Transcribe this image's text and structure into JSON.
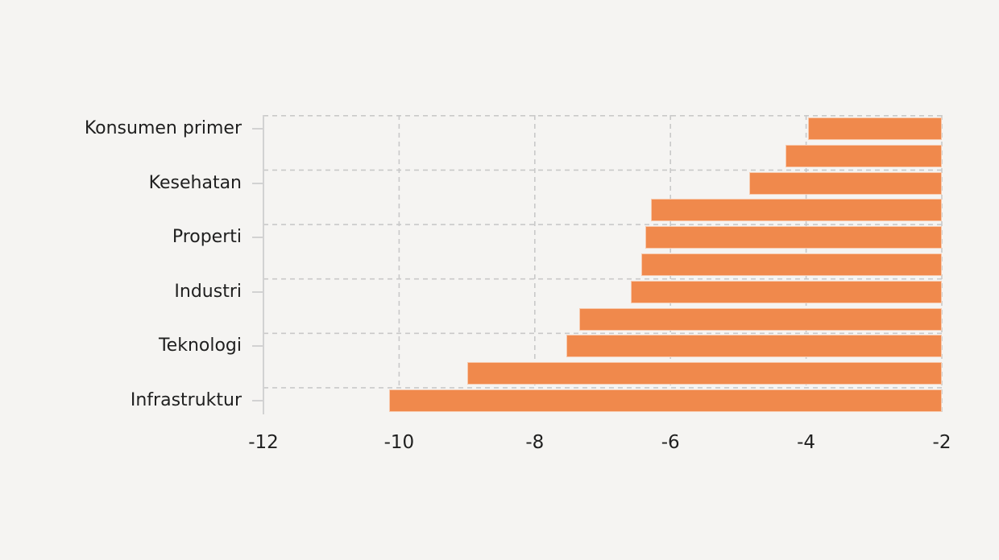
{
  "background_color": "#f5f4f2",
  "chart_data": {
    "type": "bar",
    "orientation": "horizontal",
    "bar_color": "#f0894c",
    "bar_edge_color": "rgba(255,255,255,0.55)",
    "grid_color": "#c9c9c9",
    "grid_style": "dashed",
    "axis_color": "#d2d2d2",
    "text_color": "#1f1f1f",
    "xlim": [
      -12,
      -2
    ],
    "x_tick_values": [
      -12,
      -10,
      -8,
      -6,
      -4,
      -2
    ],
    "x_tick_labels": [
      "-12",
      "-10",
      "-8",
      "-6",
      "-4",
      "-2"
    ],
    "bars_anchor_value": -2,
    "categories": [
      "Konsumen primer",
      "",
      "Kesehatan",
      "",
      "Properti",
      "",
      "Industri",
      "",
      "Teknologi",
      "",
      "Infrastruktur"
    ],
    "values": [
      -3.97,
      -4.3,
      -4.84,
      -6.29,
      -6.37,
      -6.43,
      -6.59,
      -7.35,
      -7.54,
      -9.0,
      -10.15
    ],
    "y_axis_labels": [
      "Konsumen primer",
      "Kesehatan",
      "Properti",
      "Industri",
      "Teknologi",
      "Infrastruktur"
    ],
    "legend": "none"
  }
}
